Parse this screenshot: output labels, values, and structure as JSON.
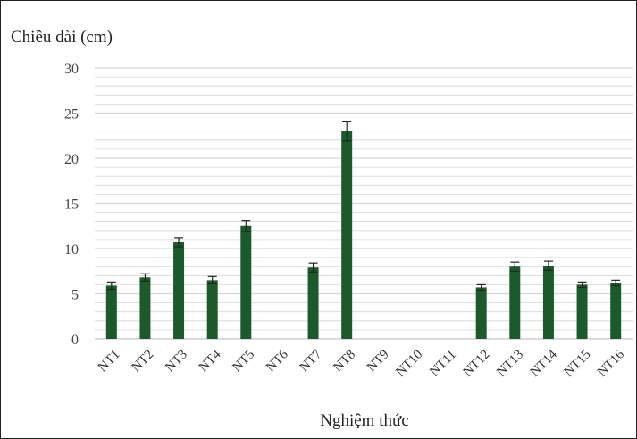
{
  "chart_data": {
    "type": "bar",
    "title": "",
    "ylabel": "Chiều dài (cm)",
    "xlabel": "Nghiệm thức",
    "ylim": [
      0,
      30
    ],
    "yticks": [
      0,
      5,
      10,
      15,
      20,
      25,
      30
    ],
    "minor_grid_step": 1,
    "grid": true,
    "categories": [
      "NT1",
      "NT2",
      "NT3",
      "NT4",
      "NT5",
      "NT6",
      "NT7",
      "NT8",
      "NT9",
      "NT10",
      "NT11",
      "NT12",
      "NT13",
      "NT14",
      "NT15",
      "NT16"
    ],
    "values": [
      5.9,
      6.8,
      10.7,
      6.5,
      12.5,
      0,
      7.9,
      23.0,
      0,
      0,
      0,
      5.7,
      8.0,
      8.1,
      6.0,
      6.2
    ],
    "errors": [
      0.4,
      0.4,
      0.5,
      0.4,
      0.6,
      0,
      0.5,
      1.1,
      0,
      0,
      0,
      0.3,
      0.5,
      0.5,
      0.3,
      0.3
    ],
    "colors": {
      "bar": "#1d5a2b",
      "grid": "#d6d6d6",
      "axis": "#c8c8c8"
    }
  }
}
